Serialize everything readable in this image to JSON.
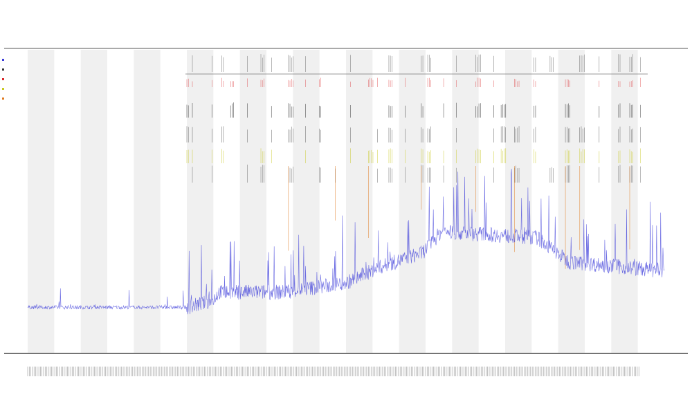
{
  "chart_data": {
    "type": "line",
    "title": "",
    "subtitle_lines": [
      "",
      ""
    ],
    "xlabel": "",
    "ylabel": "",
    "legend_placement": "top-left",
    "series": [
      {
        "name": "",
        "color": "#3b3bd9",
        "kind": "line"
      },
      {
        "name": "",
        "color": "#333333",
        "kind": "events"
      },
      {
        "name": "",
        "color": "#d9282a",
        "kind": "events"
      },
      {
        "name": "",
        "color": "#c8c820",
        "kind": "events"
      },
      {
        "name": "",
        "color": "#e07a20",
        "kind": "events"
      }
    ],
    "baseline_profile": [
      {
        "x": 0.0,
        "y": 0.15
      },
      {
        "x": 0.25,
        "y": 0.15
      },
      {
        "x": 0.29,
        "y": 0.17
      },
      {
        "x": 0.3,
        "y": 0.2
      },
      {
        "x": 0.4,
        "y": 0.2
      },
      {
        "x": 0.5,
        "y": 0.23
      },
      {
        "x": 0.55,
        "y": 0.28
      },
      {
        "x": 0.62,
        "y": 0.33
      },
      {
        "x": 0.65,
        "y": 0.4
      },
      {
        "x": 0.8,
        "y": 0.38
      },
      {
        "x": 0.85,
        "y": 0.3
      },
      {
        "x": 1.0,
        "y": 0.27
      }
    ],
    "band_count": 12,
    "event_start_x": 0.25,
    "ylim": [
      0,
      1
    ],
    "grid": false
  }
}
